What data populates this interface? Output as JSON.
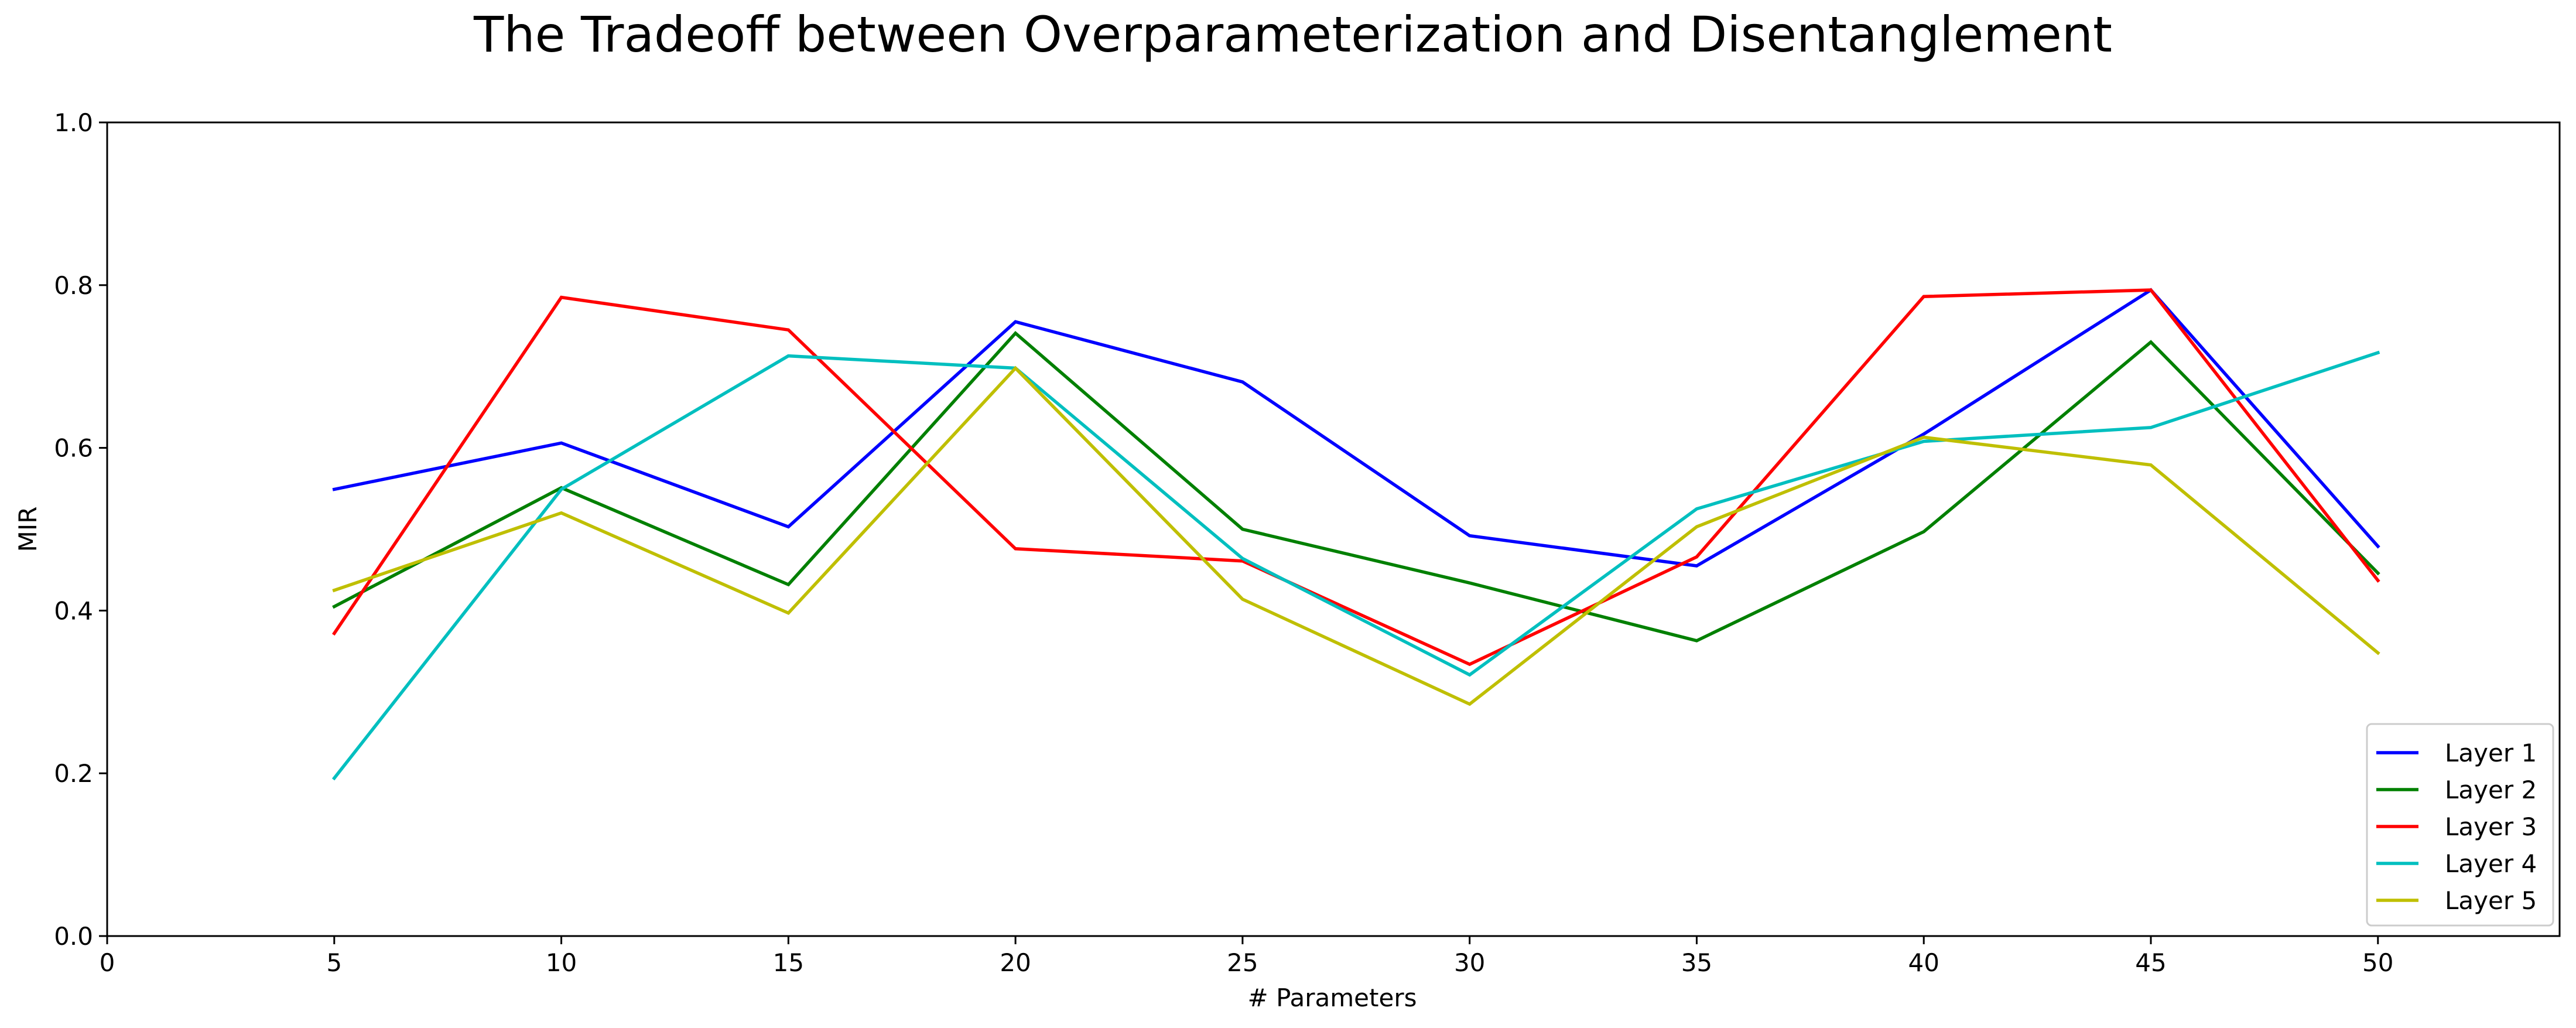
{
  "chart_data": {
    "type": "line",
    "title": "The Tradeoff between Overparameterization and Disentanglement",
    "xlabel": "# Parameters",
    "ylabel": "MIR",
    "xlim": [
      0,
      54
    ],
    "ylim": [
      0.0,
      1.0
    ],
    "xticks": [
      0,
      5,
      10,
      15,
      20,
      25,
      30,
      35,
      40,
      45,
      50
    ],
    "yticks": [
      0.0,
      0.2,
      0.4,
      0.6,
      0.8,
      1.0
    ],
    "grid": false,
    "legend_position": "lower-right",
    "x": [
      5,
      10,
      15,
      20,
      25,
      30,
      35,
      40,
      45,
      50
    ],
    "series": [
      {
        "name": "Layer 1",
        "color": "#0000ff",
        "values": [
          0.549,
          0.606,
          0.503,
          0.755,
          0.681,
          0.492,
          0.455,
          0.617,
          0.794,
          0.479
        ]
      },
      {
        "name": "Layer 2",
        "color": "#008000",
        "values": [
          0.405,
          0.551,
          0.432,
          0.741,
          0.5,
          0.434,
          0.363,
          0.497,
          0.73,
          0.446
        ]
      },
      {
        "name": "Layer 3",
        "color": "#ff0000",
        "values": [
          0.372,
          0.785,
          0.745,
          0.476,
          0.461,
          0.334,
          0.466,
          0.786,
          0.794,
          0.437
        ]
      },
      {
        "name": "Layer 4",
        "color": "#00bfbf",
        "values": [
          0.194,
          0.549,
          0.713,
          0.698,
          0.464,
          0.321,
          0.525,
          0.608,
          0.625,
          0.717
        ]
      },
      {
        "name": "Layer 5",
        "color": "#bfbf00",
        "values": [
          0.425,
          0.52,
          0.397,
          0.698,
          0.414,
          0.285,
          0.503,
          0.613,
          0.579,
          0.348
        ]
      }
    ]
  }
}
